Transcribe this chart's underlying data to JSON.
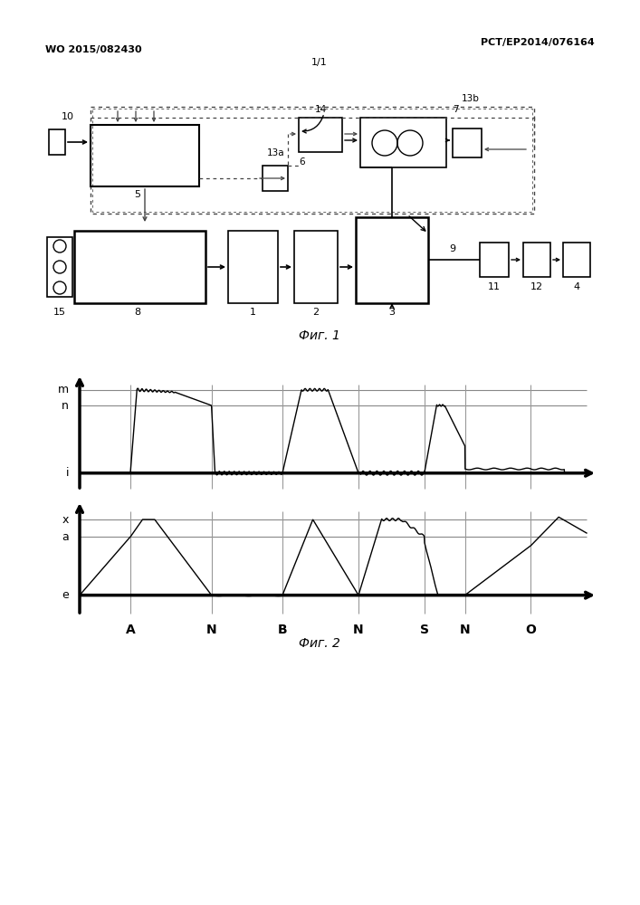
{
  "header_left": "WO 2015/082430",
  "header_right": "PCT/EP2014/076164",
  "page_num": "1/1",
  "fig1_caption": "Фиг. 1",
  "fig2_caption": "Фиг. 2",
  "background_color": "#ffffff",
  "text_color": "#000000",
  "line_color": "#000000",
  "graph1_ylabel_m": "m",
  "graph1_ylabel_n": "n",
  "graph1_ylabel_i": "i",
  "graph2_ylabel_x": "x",
  "graph2_ylabel_a": "a",
  "graph2_ylabel_e": "e",
  "x_labels": [
    "A",
    "N",
    "B",
    "N",
    "S",
    "N",
    "O"
  ],
  "x_positions": [
    0.1,
    0.26,
    0.4,
    0.55,
    0.68,
    0.76,
    0.89
  ]
}
